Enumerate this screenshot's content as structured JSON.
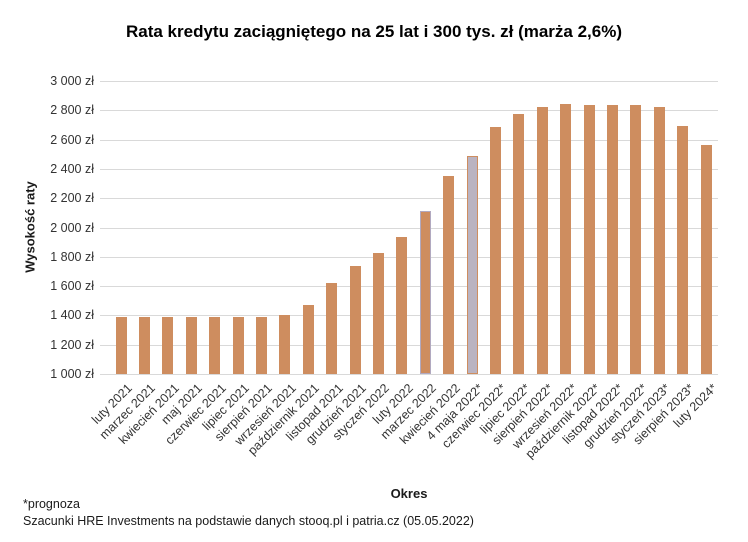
{
  "title": "Rata kredytu zaciągniętego na 25 lat i 300 tys. zł (marża 2,6%)",
  "footnotes": {
    "prognoza": "*prognoza",
    "source": "Szacunki HRE Investments na podstawie danych stooq.pl i patria.cz (05.05.2022)"
  },
  "chart_data": {
    "type": "bar",
    "title": "Rata kredytu zaciągniętego na 25 lat i 300 tys. zł (marża 2,6%)",
    "xlabel": "Okres",
    "ylabel": "Wysokość raty",
    "ylim": [
      1000,
      3000
    ],
    "grid": true,
    "legend": false,
    "yticks": [
      {
        "value": 1000,
        "label": "1 000 zł"
      },
      {
        "value": 1200,
        "label": "1 200 zł"
      },
      {
        "value": 1400,
        "label": "1 400 zł"
      },
      {
        "value": 1600,
        "label": "1 600 zł"
      },
      {
        "value": 1800,
        "label": "1 800 zł"
      },
      {
        "value": 2000,
        "label": "2 000 zł"
      },
      {
        "value": 2200,
        "label": "2 200 zł"
      },
      {
        "value": 2400,
        "label": "2 400 zł"
      },
      {
        "value": 2600,
        "label": "2 600 zł"
      },
      {
        "value": 2800,
        "label": "2 800 zł"
      },
      {
        "value": 3000,
        "label": "3 000 zł"
      }
    ],
    "categories": [
      "luty 2021",
      "marzec 2021",
      "kwiecień 2021",
      "maj 2021",
      "czerwiec 2021",
      "lipiec 2021",
      "sierpień 2021",
      "wrzesień 2021",
      "październik 2021",
      "listopad 2021",
      "grudzień 2021",
      "styczeń 2022",
      "luty 2022",
      "marzec 2022",
      "kwiecień 2022",
      "4 maja 2022*",
      "czerwiec 2022*",
      "lipiec 2022*",
      "sierpień 2022*",
      "wrzesień 2022*",
      "październik 2022*",
      "listopad 2022*",
      "grudzień 2022*",
      "styczeń 2023*",
      "sierpień 2023*",
      "luty 2024*"
    ],
    "values": [
      1390,
      1390,
      1390,
      1390,
      1390,
      1390,
      1390,
      1400,
      1470,
      1620,
      1740,
      1825,
      1935,
      2110,
      2350,
      2490,
      2685,
      2775,
      2825,
      2845,
      2835,
      2835,
      2835,
      2825,
      2695,
      2560
    ],
    "bar_color": "#CE8D5F",
    "gridline_color": "#D9D9D9",
    "highlights": [
      {
        "index": 13,
        "category": "marzec 2022",
        "fill": "#CE8D5F",
        "border": "#B1A9C0"
      },
      {
        "index": 15,
        "category": "4 maja 2022*",
        "fill": "#BAB3C1",
        "border": "#CE8D5F"
      }
    ]
  }
}
